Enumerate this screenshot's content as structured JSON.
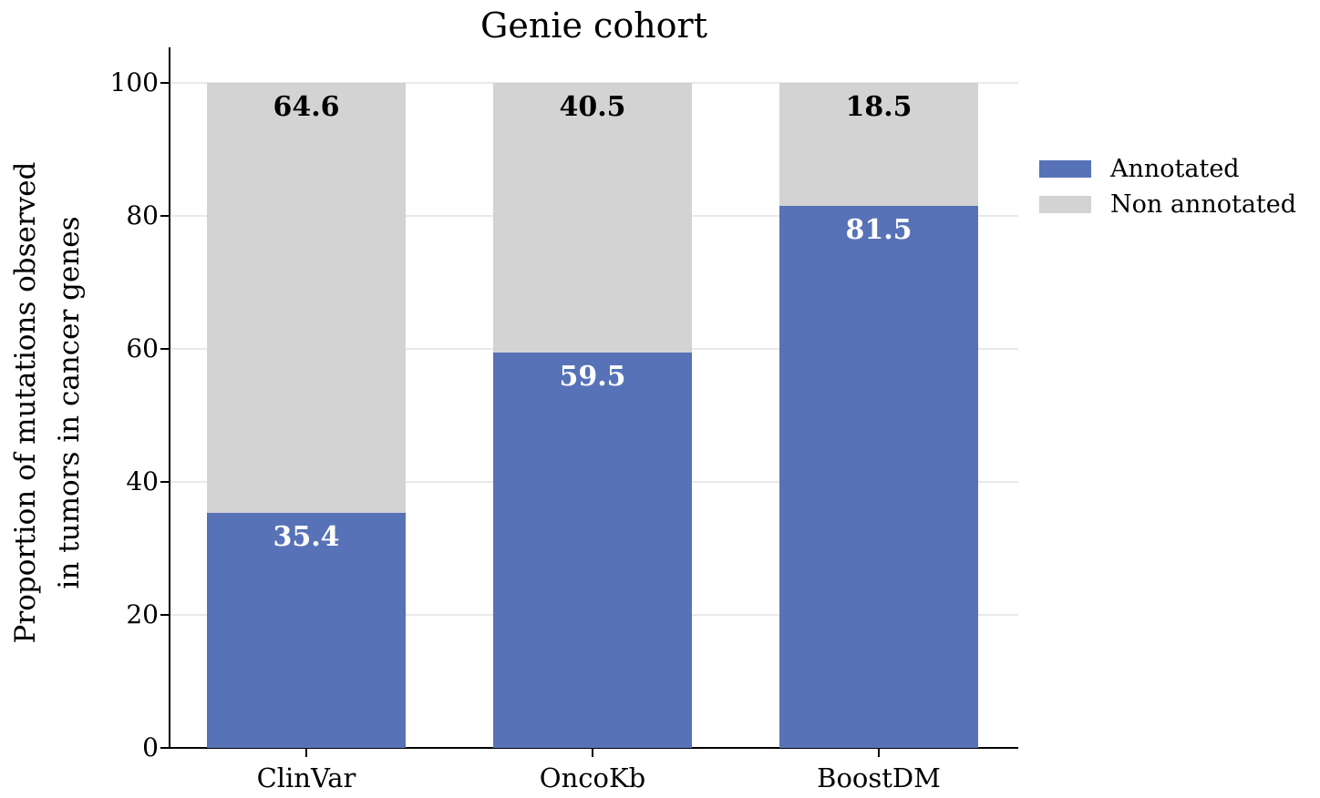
{
  "chart_data": {
    "type": "bar",
    "stacked": true,
    "title": "Genie cohort",
    "ylabel_lines": [
      "Proportion of mutations observed",
      "in tumors in cancer genes"
    ],
    "xlabel": "",
    "categories": [
      "ClinVar",
      "OncoKb",
      "BoostDM"
    ],
    "series": [
      {
        "name": "Annotated",
        "color": "#5772b6",
        "label_color": "#ffffff",
        "values": [
          35.4,
          59.5,
          81.5
        ]
      },
      {
        "name": "Non annotated",
        "color": "#d3d3d3",
        "label_color": "#000000",
        "values": [
          64.6,
          40.5,
          18.5
        ]
      }
    ],
    "ylim": [
      0,
      100
    ],
    "yticks": [
      0,
      20,
      40,
      60,
      80,
      100
    ],
    "grid": true,
    "gridline_color": "#e9e9e9",
    "axis_color": "#000000",
    "legend_position": "right-outside"
  }
}
